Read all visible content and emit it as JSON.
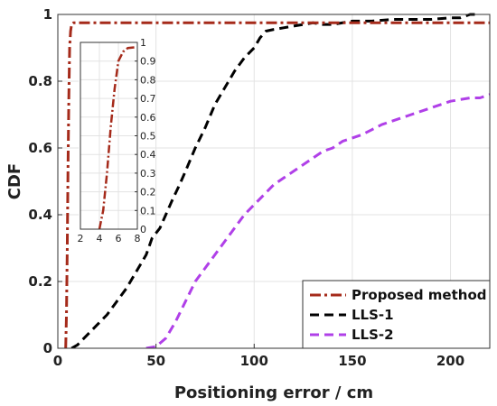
{
  "chart_data": {
    "type": "line",
    "xlabel": "Positioning error / cm",
    "ylabel": "CDF",
    "xlim": [
      0,
      220
    ],
    "ylim": [
      0,
      1
    ],
    "xticks": [
      0,
      50,
      100,
      150,
      200
    ],
    "yticks": [
      0,
      0.2,
      0.4,
      0.6,
      0.8,
      1
    ],
    "xtick_labels": [
      "0",
      "50",
      "100",
      "150",
      "200"
    ],
    "ytick_labels": [
      "0",
      "0.2",
      "0.4",
      "0.6",
      "0.8",
      "1"
    ],
    "grid": true,
    "legend_position": "bottom-right",
    "colors": {
      "proposed": "#a52a1a",
      "lls1": "#000000",
      "lls2": "#b040e8",
      "grid": "#e3e3e3",
      "axis": "#333333"
    },
    "series": [
      {
        "name": "Proposed method",
        "style": "dash-dot",
        "x": [
          4,
          4.4,
          4.8,
          5.2,
          5.6,
          6,
          6.5,
          7,
          8,
          220
        ],
        "y": [
          0,
          0.1,
          0.3,
          0.55,
          0.75,
          0.9,
          0.95,
          0.97,
          0.975,
          0.975
        ]
      },
      {
        "name": "LLS-1",
        "style": "dashed",
        "x": [
          7,
          10,
          15,
          20,
          25,
          30,
          35,
          40,
          45,
          48,
          52,
          55,
          58,
          62,
          65,
          70,
          75,
          80,
          85,
          90,
          95,
          100,
          103,
          106,
          110,
          115,
          120,
          125,
          130,
          135,
          140,
          145,
          150,
          160,
          170,
          180,
          190,
          200,
          205,
          210,
          215
        ],
        "y": [
          0,
          0.01,
          0.04,
          0.07,
          0.1,
          0.14,
          0.18,
          0.23,
          0.28,
          0.33,
          0.36,
          0.4,
          0.44,
          0.49,
          0.53,
          0.6,
          0.66,
          0.73,
          0.78,
          0.83,
          0.87,
          0.9,
          0.93,
          0.95,
          0.955,
          0.96,
          0.965,
          0.97,
          0.975,
          0.97,
          0.97,
          0.975,
          0.98,
          0.98,
          0.985,
          0.985,
          0.985,
          0.99,
          0.99,
          1,
          1
        ]
      },
      {
        "name": "LLS-2",
        "style": "dashed",
        "x": [
          45,
          50,
          55,
          60,
          65,
          70,
          75,
          80,
          85,
          90,
          95,
          100,
          105,
          110,
          115,
          120,
          125,
          130,
          135,
          140,
          145,
          150,
          155,
          160,
          165,
          170,
          175,
          180,
          185,
          190,
          195,
          200,
          205,
          210,
          215,
          220
        ],
        "y": [
          0,
          0.005,
          0.03,
          0.08,
          0.14,
          0.2,
          0.24,
          0.28,
          0.32,
          0.36,
          0.4,
          0.43,
          0.46,
          0.49,
          0.51,
          0.53,
          0.55,
          0.57,
          0.59,
          0.6,
          0.62,
          0.63,
          0.64,
          0.655,
          0.67,
          0.68,
          0.69,
          0.7,
          0.71,
          0.72,
          0.73,
          0.74,
          0.745,
          0.75,
          0.75,
          0.76
        ]
      }
    ],
    "inset": {
      "xlim": [
        2,
        8
      ],
      "ylim": [
        0,
        1
      ],
      "xticks": [
        2,
        4,
        6,
        8
      ],
      "yticks": [
        0,
        0.1,
        0.2,
        0.3,
        0.4,
        0.5,
        0.6,
        0.7,
        0.8,
        0.9,
        1
      ],
      "xtick_labels": [
        "2",
        "4",
        "6",
        "8"
      ],
      "ytick_labels": [
        "0",
        "0.1",
        "0.2",
        "0.3",
        "0.4",
        "0.5",
        "0.6",
        "0.7",
        "0.8",
        "0.9",
        "1"
      ],
      "series": "Proposed method"
    }
  }
}
